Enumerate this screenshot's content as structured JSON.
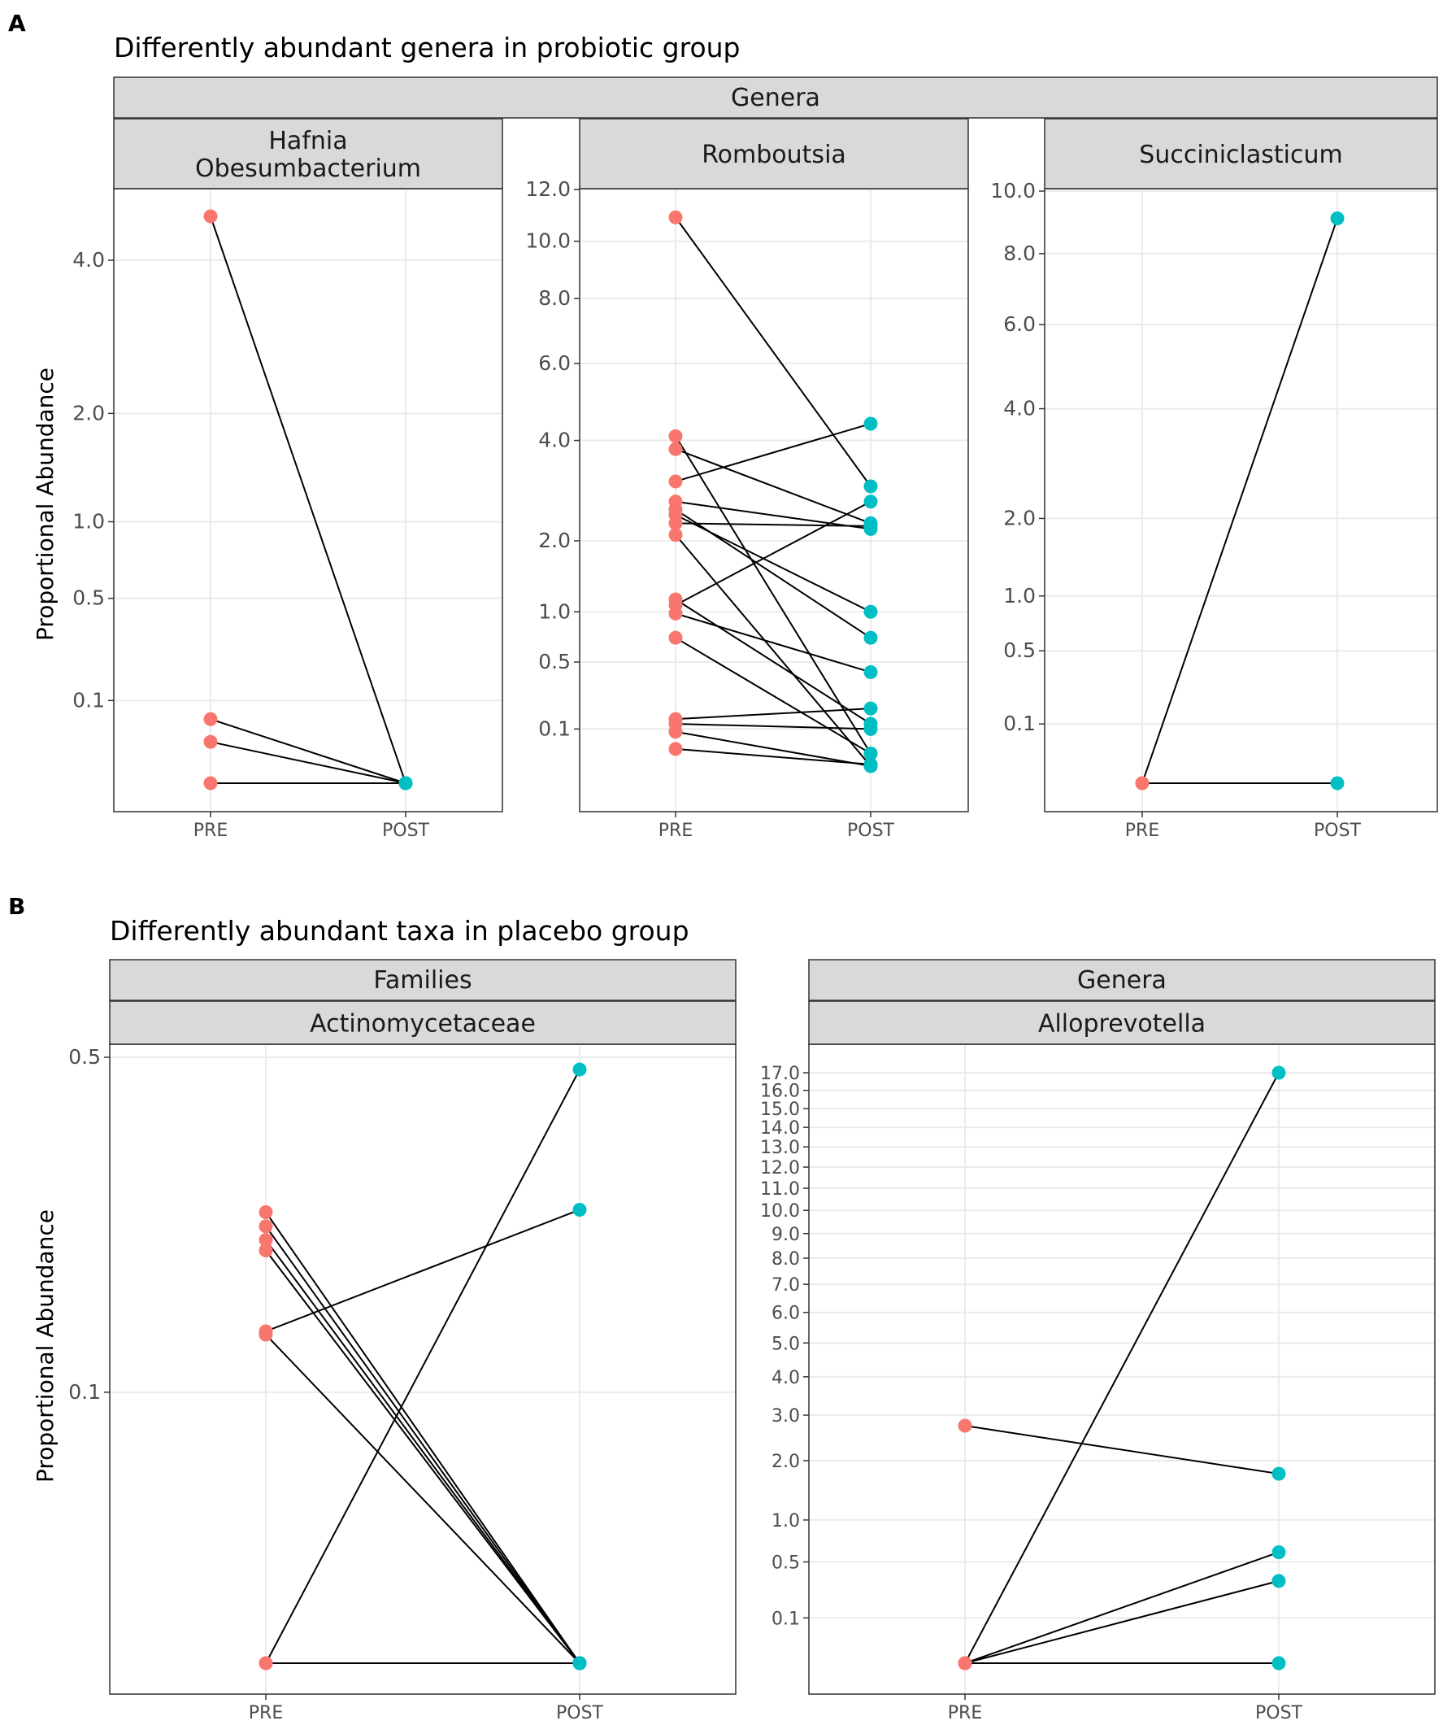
{
  "figure": {
    "panel_a_letter": "A",
    "panel_b_letter": "B",
    "panel_a_title": "Differently abundant genera in probiotic group",
    "panel_b_title": "Differently abundant taxa in placebo group",
    "y_axis_label": "Proportional Abundance",
    "x_labels": [
      "PRE",
      "POST"
    ],
    "colors": {
      "pre": "#F8766D",
      "post": "#00BFC4",
      "line": "#000000",
      "strip": "#d9d9d9",
      "grid": "#ebebeb"
    }
  },
  "chart_data": [
    {
      "type": "line",
      "section": "A",
      "group_header": "Genera",
      "facet": "Hafnia\nObesumbacterium",
      "x": [
        "PRE",
        "POST"
      ],
      "y_ticks": [
        0.1,
        0.5,
        1.0,
        2.0,
        4.0
      ],
      "y_tick_labels": [
        "0.1",
        "0.5",
        "1.0",
        "2.0",
        "4.0"
      ],
      "scale": "sqrt",
      "pairs": [
        [
          4.7,
          0.0
        ],
        [
          0.06,
          0.0
        ],
        [
          0.025,
          0.0
        ],
        [
          0.0,
          0.0
        ]
      ]
    },
    {
      "type": "line",
      "section": "A",
      "group_header": "Genera",
      "facet": "Romboutsia",
      "x": [
        "PRE",
        "POST"
      ],
      "y_ticks": [
        0.1,
        0.5,
        1.0,
        2.0,
        4.0,
        6.0,
        8.0,
        10.0,
        12.0
      ],
      "y_tick_labels": [
        "0.1",
        "0.5",
        "1.0",
        "2.0",
        "4.0",
        "6.0",
        "8.0",
        "10.0",
        "12.0"
      ],
      "scale": "sqrt",
      "pairs": [
        [
          10.9,
          3.0
        ],
        [
          4.1,
          0.03
        ],
        [
          3.8,
          2.3
        ],
        [
          3.1,
          4.4
        ],
        [
          2.7,
          2.2
        ],
        [
          2.55,
          0.72
        ],
        [
          2.45,
          1.0
        ],
        [
          2.3,
          2.25
        ],
        [
          2.1,
          0.01
        ],
        [
          1.15,
          0.12
        ],
        [
          1.08,
          2.7
        ],
        [
          0.98,
          0.42
        ],
        [
          0.72,
          0.03
        ],
        [
          0.14,
          0.19
        ],
        [
          0.12,
          0.1
        ],
        [
          0.09,
          0.01
        ],
        [
          0.04,
          0.012
        ]
      ]
    },
    {
      "type": "line",
      "section": "A",
      "group_header": "Genera",
      "facet": "Succiniclasticum",
      "x": [
        "PRE",
        "POST"
      ],
      "y_ticks": [
        0.1,
        0.5,
        1.0,
        2.0,
        4.0,
        6.0,
        8.0,
        10.0
      ],
      "y_tick_labels": [
        "0.1",
        "0.5",
        "1.0",
        "2.0",
        "4.0",
        "6.0",
        "8.0",
        "10.0"
      ],
      "scale": "sqrt",
      "pairs": [
        [
          0.0,
          9.1
        ],
        [
          0.0,
          0.0
        ]
      ]
    },
    {
      "type": "line",
      "section": "B",
      "group_header": "Families",
      "facet": "Actinomycetaceae",
      "x": [
        "PRE",
        "POST"
      ],
      "y_ticks": [
        0.1,
        0.5
      ],
      "y_tick_labels": [
        "0.1",
        "0.5"
      ],
      "scale": "sqrt",
      "pairs": [
        [
          0.277,
          0.0
        ],
        [
          0.26,
          0.0
        ],
        [
          0.244,
          0.0
        ],
        [
          0.232,
          0.0
        ],
        [
          0.15,
          0.28
        ],
        [
          0.147,
          0.0
        ],
        [
          0.0,
          0.48
        ],
        [
          0.0,
          0.0
        ]
      ]
    },
    {
      "type": "line",
      "section": "B",
      "group_header": "Genera",
      "facet": "Alloprevotella",
      "x": [
        "PRE",
        "POST"
      ],
      "y_ticks": [
        0.1,
        0.5,
        1.0,
        2.0,
        3.0,
        4.0,
        5.0,
        6.0,
        7.0,
        8.0,
        9.0,
        10.0,
        11.0,
        12.0,
        13.0,
        14.0,
        15.0,
        16.0,
        17.0
      ],
      "y_tick_labels": [
        "0.1",
        "0.5",
        "1.0",
        "2.0",
        "3.0",
        "4.0",
        "5.0",
        "6.0",
        "7.0",
        "8.0",
        "9.0",
        "10.0",
        "11.0",
        "12.0",
        "13.0",
        "14.0",
        "15.0",
        "16.0",
        "17.0"
      ],
      "scale": "sqrt",
      "pairs": [
        [
          2.75,
          1.75
        ],
        [
          0.0,
          17.0
        ],
        [
          0.0,
          0.6
        ],
        [
          0.0,
          0.33
        ],
        [
          0.0,
          0.0
        ]
      ]
    }
  ]
}
